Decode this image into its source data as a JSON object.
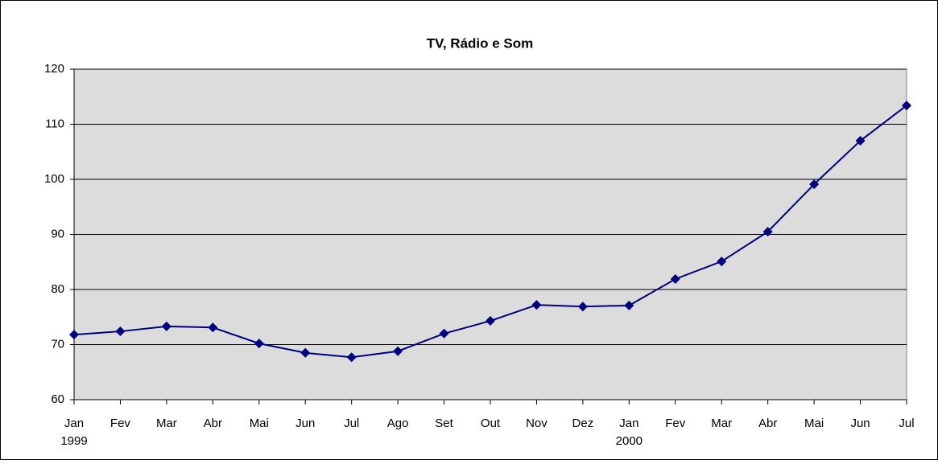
{
  "chart_data": {
    "type": "line",
    "title": "TV, Rádio e Som",
    "categories": [
      "Jan",
      "Fev",
      "Mar",
      "Abr",
      "Mai",
      "Jun",
      "Jul",
      "Ago",
      "Set",
      "Out",
      "Nov",
      "Dez",
      "Jan",
      "Fev",
      "Mar",
      "Abr",
      "Mai",
      "Jun",
      "Jul"
    ],
    "categories2": [
      "1999",
      null,
      null,
      null,
      null,
      null,
      null,
      null,
      null,
      null,
      null,
      null,
      "2000",
      null,
      null,
      null,
      null,
      null,
      null
    ],
    "values": [
      71.8,
      72.4,
      73.3,
      73.1,
      70.2,
      68.5,
      67.7,
      68.8,
      72.0,
      74.3,
      77.2,
      76.9,
      77.1,
      81.9,
      85.1,
      90.5,
      99.1,
      107.0,
      113.4
    ],
    "color": "#000080",
    "ylim": [
      60,
      120
    ],
    "yticks": [
      60,
      70,
      80,
      90,
      100,
      110,
      120
    ],
    "grid": true
  }
}
